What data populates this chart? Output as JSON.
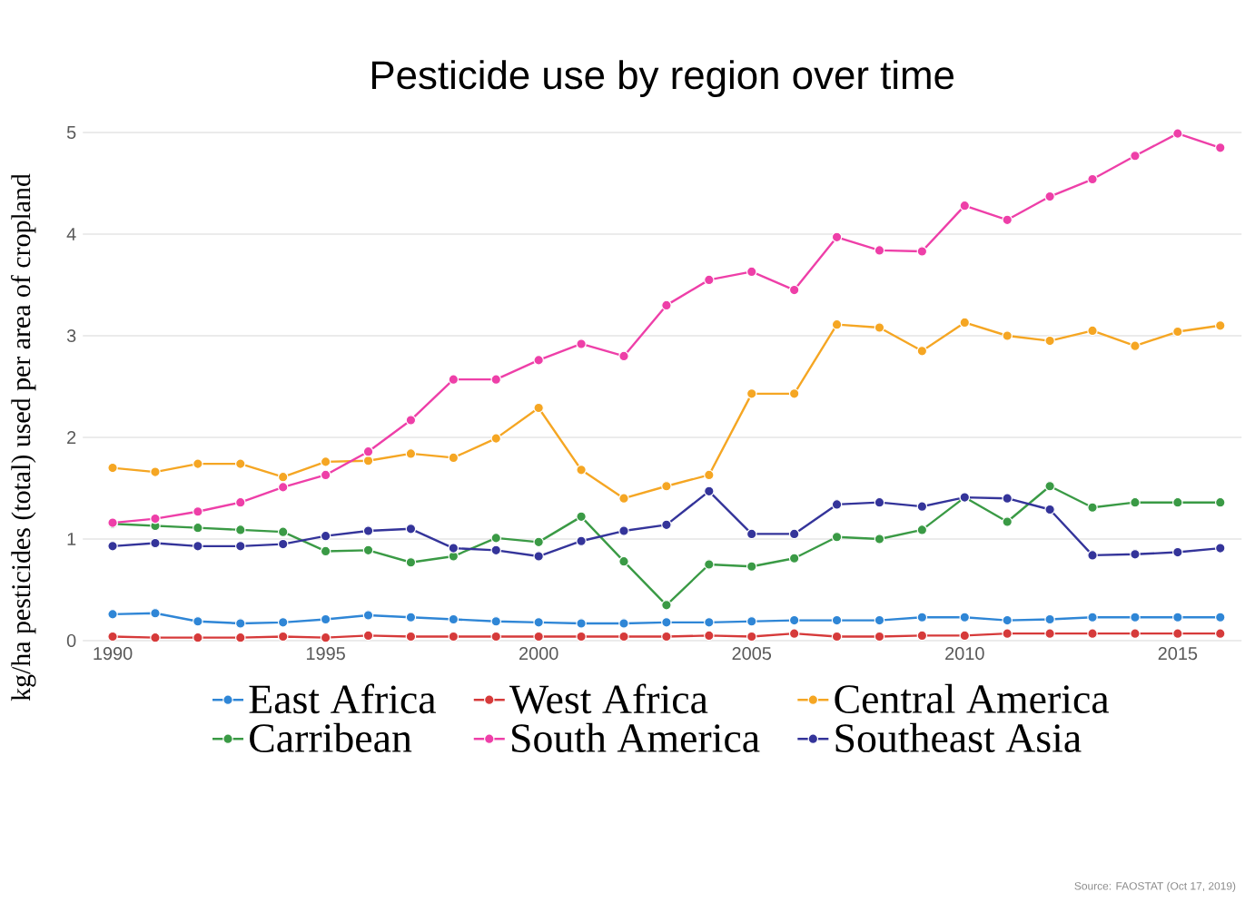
{
  "chart_data": {
    "type": "line",
    "title": "Pesticide use by region over time",
    "ylabel": "kg/ha pesticides (total) used per area of cropland",
    "x": [
      1990,
      1991,
      1992,
      1993,
      1994,
      1995,
      1996,
      1997,
      1998,
      1999,
      2000,
      2001,
      2002,
      2003,
      2004,
      2005,
      2006,
      2007,
      2008,
      2009,
      2010,
      2011,
      2012,
      2013,
      2014,
      2015,
      2016
    ],
    "series": [
      {
        "name": "East Africa",
        "color": "#2f86d6",
        "values": [
          0.26,
          0.27,
          0.19,
          0.17,
          0.18,
          0.21,
          0.25,
          0.23,
          0.21,
          0.19,
          0.18,
          0.17,
          0.17,
          0.18,
          0.18,
          0.19,
          0.2,
          0.2,
          0.2,
          0.23,
          0.23,
          0.2,
          0.21,
          0.23,
          0.23,
          0.23,
          0.23
        ]
      },
      {
        "name": "West Africa",
        "color": "#d63a3a",
        "values": [
          0.04,
          0.03,
          0.03,
          0.03,
          0.04,
          0.03,
          0.05,
          0.04,
          0.04,
          0.04,
          0.04,
          0.04,
          0.04,
          0.04,
          0.05,
          0.04,
          0.07,
          0.04,
          0.04,
          0.05,
          0.05,
          0.07,
          0.07,
          0.07,
          0.07,
          0.07,
          0.07
        ]
      },
      {
        "name": "Central America",
        "color": "#f5a623",
        "values": [
          1.7,
          1.66,
          1.74,
          1.74,
          1.61,
          1.76,
          1.77,
          1.84,
          1.8,
          1.99,
          2.29,
          1.68,
          1.4,
          1.52,
          1.63,
          2.43,
          2.43,
          3.11,
          3.08,
          2.85,
          3.13,
          3.0,
          2.95,
          3.05,
          2.9,
          3.04,
          3.1
        ]
      },
      {
        "name": "Carribean",
        "color": "#3a9a45",
        "values": [
          1.15,
          1.13,
          1.11,
          1.09,
          1.07,
          0.88,
          0.89,
          0.77,
          0.83,
          1.01,
          0.97,
          1.22,
          0.78,
          0.35,
          0.75,
          0.73,
          0.81,
          1.02,
          1.0,
          1.09,
          1.41,
          1.17,
          1.52,
          1.31,
          1.36,
          1.36,
          1.36
        ]
      },
      {
        "name": "South America",
        "color": "#ee3fa8",
        "values": [
          1.16,
          1.2,
          1.27,
          1.36,
          1.51,
          1.63,
          1.86,
          2.17,
          2.57,
          2.57,
          2.76,
          2.92,
          2.8,
          3.3,
          3.55,
          3.63,
          3.45,
          3.97,
          3.84,
          3.83,
          4.28,
          4.14,
          4.37,
          4.54,
          4.77,
          4.99,
          4.85
        ]
      },
      {
        "name": "Southeast Asia",
        "color": "#34349a",
        "values": [
          0.93,
          0.96,
          0.93,
          0.93,
          0.95,
          1.03,
          1.08,
          1.1,
          0.91,
          0.89,
          0.83,
          0.98,
          1.08,
          1.14,
          1.47,
          1.05,
          1.05,
          1.34,
          1.36,
          1.32,
          1.41,
          1.4,
          1.29,
          0.84,
          0.85,
          0.87,
          0.91
        ]
      }
    ],
    "xlim": [
      1989.3,
      2016.5
    ],
    "xticks": [
      1990,
      1995,
      2000,
      2005,
      2010,
      2015
    ],
    "ylim": [
      0,
      5
    ],
    "yticks": [
      0,
      1,
      2,
      3,
      4,
      5
    ],
    "grid": "y",
    "legend": "bottom",
    "marker": "circle",
    "line_style": "solid",
    "annotations": [
      "Source: FAOSTAT (Oct 17, 2019)"
    ]
  }
}
